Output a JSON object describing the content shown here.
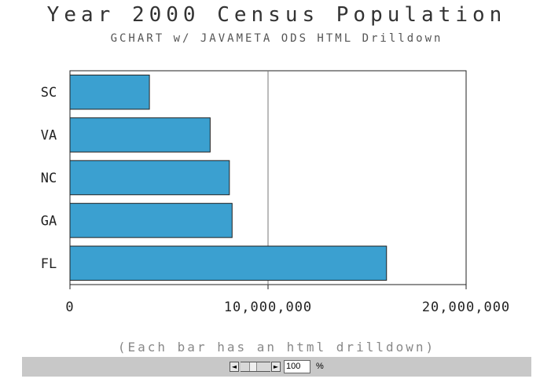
{
  "chart_data": {
    "type": "bar",
    "orientation": "horizontal",
    "title": "Year 2000 Census Population",
    "subtitle": "GCHART w/ JAVAMETA ODS HTML Drilldown",
    "footnote": "(Each bar has an html drilldown)",
    "categories": [
      "SC",
      "VA",
      "NC",
      "GA",
      "FL"
    ],
    "values": [
      4012012,
      7078515,
      8049313,
      8186453,
      15982378
    ],
    "xlim": [
      0,
      20000000
    ],
    "ticks": [
      0,
      10000000,
      20000000
    ],
    "tick_labels": [
      "0",
      "10,000,000",
      "20,000,000"
    ],
    "grid": true,
    "colors": {
      "bar": "#3ba0d0",
      "bar_outline": "#222222"
    }
  },
  "zoom": {
    "left_arrow": "◄",
    "right_arrow": "►",
    "value": "100",
    "unit": "%"
  }
}
